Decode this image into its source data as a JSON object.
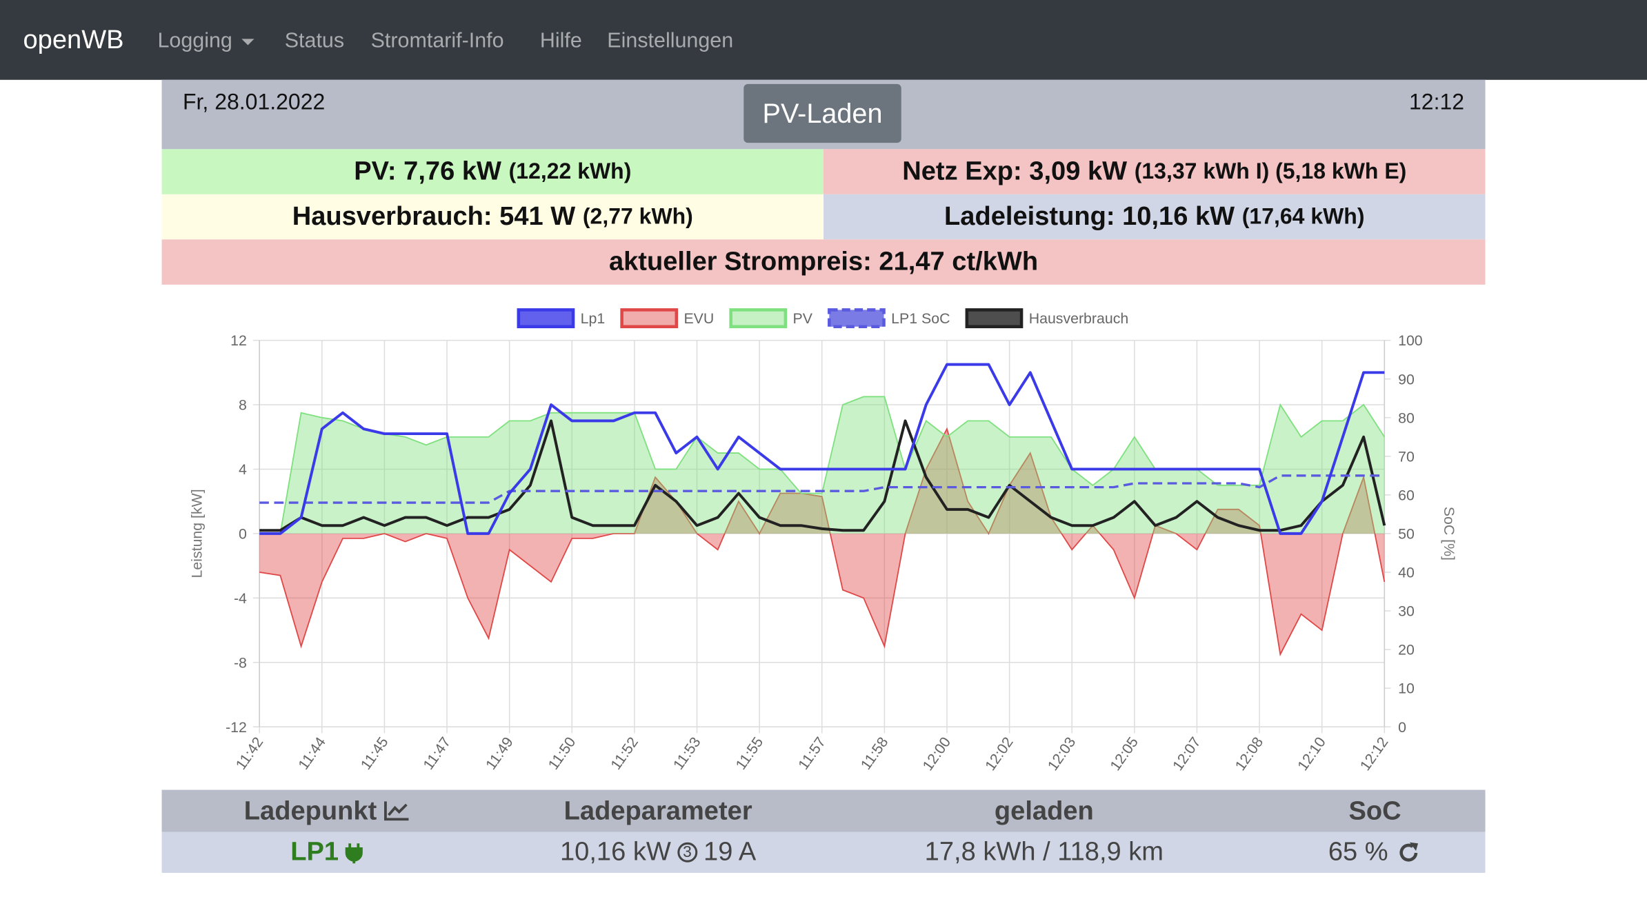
{
  "nav": {
    "brand": "openWB",
    "items": [
      "Logging",
      "Status",
      "Stromtarif-Info",
      "Hilfe",
      "Einstellungen"
    ]
  },
  "header": {
    "date": "Fr, 28.01.2022",
    "mode": "PV-Laden",
    "time": "12:12"
  },
  "tiles": [
    {
      "label": "PV: 7,76 kW",
      "extra": "(12,22 kWh)"
    },
    {
      "label": "Netz Exp: 3,09 kW",
      "extra": "(13,37 kWh I) (5,18 kWh E)"
    },
    {
      "label": "Hausverbrauch: 541 W",
      "extra": "(2,77 kWh)"
    },
    {
      "label": "Ladeleistung: 10,16 kW",
      "extra": "(17,64 kWh)"
    },
    {
      "label": "aktueller Strompreis: 21,47 ct/kWh"
    }
  ],
  "chart_data": {
    "type": "line",
    "ylabel": "Leistung [kW]",
    "y2label": "SoC [%]",
    "categories": [
      "11:42",
      null,
      null,
      "11:44",
      null,
      null,
      "11:45",
      null,
      null,
      "11:47",
      null,
      null,
      "11:49",
      null,
      null,
      "11:50",
      null,
      null,
      "11:52",
      null,
      null,
      "11:53",
      null,
      null,
      "11:55",
      null,
      null,
      "11:57",
      null,
      null,
      "11:58",
      null,
      null,
      "12:00",
      null,
      null,
      "12:02",
      null,
      null,
      "12:03",
      null,
      null,
      "12:05",
      null,
      null,
      "12:07",
      null,
      null,
      "12:08",
      null,
      null,
      "12:10",
      null,
      null,
      "12:12"
    ],
    "series": [
      {
        "name": "Lp1",
        "color": "#3a3ae8",
        "values": [
          0,
          0,
          1,
          6.5,
          7.5,
          6.5,
          6.2,
          6.2,
          6.2,
          6.2,
          0,
          0,
          2.5,
          4,
          8,
          7,
          7,
          7,
          7.5,
          7.5,
          5,
          6,
          4,
          6,
          5,
          4,
          4,
          4,
          4,
          4,
          4,
          4,
          8,
          10.5,
          10.5,
          10.5,
          8,
          10,
          7,
          4,
          4,
          4,
          4,
          4,
          4,
          4,
          4,
          4,
          4,
          0,
          0,
          2,
          6,
          10,
          10
        ]
      },
      {
        "name": "EVU",
        "color": "#e04848",
        "area": true,
        "values": [
          -2.4,
          -2.6,
          -7,
          -3,
          -0.3,
          -0.3,
          0,
          -0.5,
          0,
          -0.3,
          -4,
          -6.5,
          -1,
          -2,
          -3,
          -0.3,
          -0.3,
          0,
          0,
          3.5,
          2,
          0,
          -1,
          2,
          0,
          2.5,
          2.5,
          2.3,
          -3.5,
          -4,
          -7,
          0,
          4,
          6.5,
          2,
          0,
          3,
          5,
          1,
          -1,
          0.5,
          -1,
          -4,
          0.5,
          0,
          -1,
          1.5,
          1.5,
          0.5,
          -7.5,
          -5,
          -6,
          0,
          3.5,
          -3
        ]
      },
      {
        "name": "PV",
        "color": "#7fe07f",
        "area": true,
        "values": [
          0,
          0,
          7.5,
          7.2,
          7,
          6.5,
          6.2,
          6,
          5.5,
          6,
          6,
          6,
          7,
          7,
          7.5,
          7.5,
          7.5,
          7.5,
          7.5,
          4,
          4,
          6,
          5,
          5,
          4,
          4,
          2.5,
          2.5,
          8,
          8.5,
          8.5,
          4,
          7,
          6,
          7,
          7,
          6,
          6,
          6,
          4,
          3,
          4,
          6,
          4,
          4,
          4,
          3,
          3,
          3,
          8,
          6,
          7,
          7,
          8,
          6
        ]
      },
      {
        "name": "LP1 SoC",
        "color": "#5a5ae0",
        "dash": true,
        "axis": "y2",
        "values": [
          58,
          58,
          58,
          58,
          58,
          58,
          58,
          58,
          58,
          58,
          58,
          58,
          61,
          61,
          61,
          61,
          61,
          61,
          61,
          61,
          61,
          61,
          61,
          61,
          61,
          61,
          61,
          61,
          61,
          61,
          62,
          62,
          62,
          62,
          62,
          62,
          62,
          62,
          62,
          62,
          62,
          62,
          63,
          63,
          63,
          63,
          63,
          63,
          62,
          65,
          65,
          65,
          65,
          65,
          65
        ]
      },
      {
        "name": "Hausverbrauch",
        "color": "#222222",
        "values": [
          0.2,
          0.2,
          1,
          0.5,
          0.5,
          1,
          0.5,
          1,
          1,
          0.5,
          1,
          1,
          1.5,
          3,
          7,
          1,
          0.5,
          0.5,
          0.5,
          3,
          2,
          0.5,
          1,
          2.5,
          1,
          0.5,
          0.5,
          0.3,
          0.2,
          0.2,
          2,
          7,
          3.5,
          1.5,
          1.5,
          1,
          3,
          2,
          1,
          0.5,
          0.5,
          1,
          2,
          0.5,
          1,
          2,
          1,
          0.5,
          0.2,
          0.2,
          0.5,
          2,
          3,
          6,
          0.5
        ]
      }
    ],
    "ylim": [
      -12,
      12
    ],
    "yticks": [
      -12,
      -8,
      -4,
      0,
      4,
      8,
      12
    ],
    "y2lim": [
      0,
      100
    ],
    "y2ticks": [
      0,
      10,
      20,
      30,
      40,
      50,
      60,
      70,
      80,
      90,
      100
    ],
    "grid": true,
    "legend": "top"
  },
  "table": {
    "header": [
      "Ladepunkt",
      "Ladeparameter",
      "geladen",
      "SoC"
    ],
    "row": {
      "name": "LP1",
      "power": "10,16 kW",
      "phases": "3",
      "current": "19 A",
      "charged": "17,8 kWh / 118,9 km",
      "soc": "65 %"
    }
  }
}
